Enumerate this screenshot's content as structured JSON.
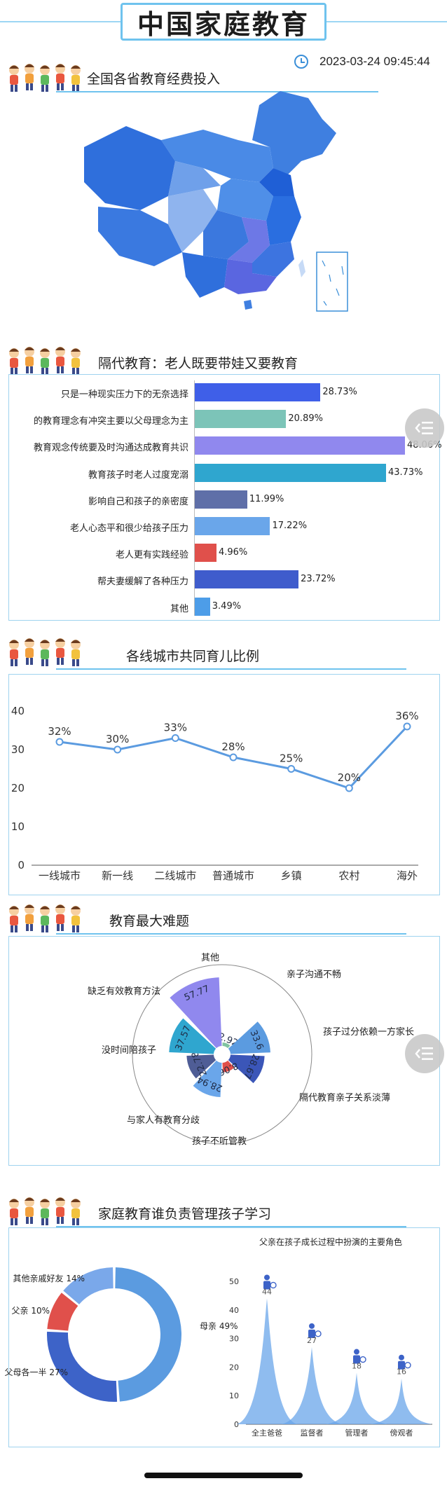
{
  "header": {
    "title": "中国家庭教育",
    "timestamp": "2023-03-24 09:45:44"
  },
  "sections": {
    "map_title": "全国各省教育经费投入",
    "bar_title": "隔代教育：老人既要带娃又要教育",
    "line_title": "各线城市共同育儿比例",
    "rose_title": "教育最大难题",
    "bottom_title": "家庭教育谁负责管理孩子学习"
  },
  "colors": {
    "accent": "#6fc3ee",
    "map_dark": "#1f5fd6",
    "map_light": "#8fb4ee"
  },
  "chart_data": [
    {
      "type": "bar",
      "categories": [
        "只是一种现实压力下的无奈选择",
        "的教育理念有冲突主要以父母理念为主",
        "教育观念传统要及时沟通达成教育共识",
        "教育孩子时老人过度宠溺",
        "影响自己和孩子的亲密度",
        "老人心态平和很少给孩子压力",
        "老人更有实践经验",
        "帮夫妻缓解了各种压力",
        "其他"
      ],
      "values": [
        28.73,
        20.89,
        48.06,
        43.73,
        11.99,
        17.22,
        4.96,
        23.72,
        3.49
      ],
      "value_labels": [
        "28.73%",
        "20.89%",
        "48.06%",
        "43.73%",
        "11.99%",
        "17.22%",
        "4.96%",
        "23.72%",
        "3.49%"
      ],
      "colors": [
        "#3f5fe8",
        "#7cc4b8",
        "#9088ee",
        "#2fa6cf",
        "#5f6fa8",
        "#6aa6ea",
        "#e0504b",
        "#3f5ccc",
        "#4d9de8"
      ]
    },
    {
      "type": "line",
      "categories": [
        "一线城市",
        "新一线",
        "二线城市",
        "普通城市",
        "乡镇",
        "农村",
        "海外"
      ],
      "values": [
        32,
        30,
        33,
        28,
        25,
        20,
        36
      ],
      "value_labels": [
        "32%",
        "30%",
        "33%",
        "28%",
        "25%",
        "20%",
        "36%"
      ],
      "yticks": [
        "0",
        "10",
        "20",
        "30",
        "40"
      ],
      "ylim": [
        0,
        40
      ],
      "color": "#5b9be0"
    },
    {
      "type": "rose",
      "categories": [
        "其他",
        "亲子沟通不畅",
        "孩子过分依赖一方家长",
        "隔代教育亲子关系淡薄",
        "孩子不听管教",
        "与家人有教育分歧",
        "没时间陪孩子",
        "缺乏有效教育方法"
      ],
      "values": [
        2.92,
        33.6,
        28.67,
        8.06,
        28.94,
        22.78,
        37.57,
        57.77
      ],
      "value_labels": [
        "2.92",
        "33.6",
        "28.67",
        "8.06",
        "28.94",
        "22.78",
        "37.57",
        "57.77"
      ],
      "colors": [
        "#7fc3a0",
        "#5b9be0",
        "#3b56b8",
        "#e0504b",
        "#6aa6ea",
        "#4f5d96",
        "#2fa6cf",
        "#9088ee"
      ]
    },
    {
      "type": "pie",
      "categories": [
        "母亲",
        "父母各一半",
        "父亲",
        "其他亲戚好友"
      ],
      "values": [
        49,
        27,
        10,
        14
      ],
      "labels": [
        "母亲 49%",
        "父母各一半 27%",
        "父亲 10%",
        "其他亲戚好友 14%"
      ],
      "colors": [
        "#5b9be0",
        "#3d63c8",
        "#e0504b",
        "#7aa8ea"
      ]
    },
    {
      "type": "area",
      "title": "父亲在孩子成长过程中扮演的主要角色",
      "categories": [
        "全主爸爸",
        "监督者",
        "管理者",
        "傍观者"
      ],
      "values": [
        44,
        27,
        18,
        16
      ],
      "value_labels": [
        "44",
        "27",
        "18",
        "16"
      ],
      "yticks": [
        "0",
        "10",
        "20",
        "30",
        "40",
        "50"
      ],
      "ylim": [
        0,
        50
      ],
      "color": "#6aa6ea"
    }
  ],
  "side_buttons": [
    {
      "icon": "list-menu-icon"
    },
    {
      "icon": "list-menu-icon"
    }
  ]
}
